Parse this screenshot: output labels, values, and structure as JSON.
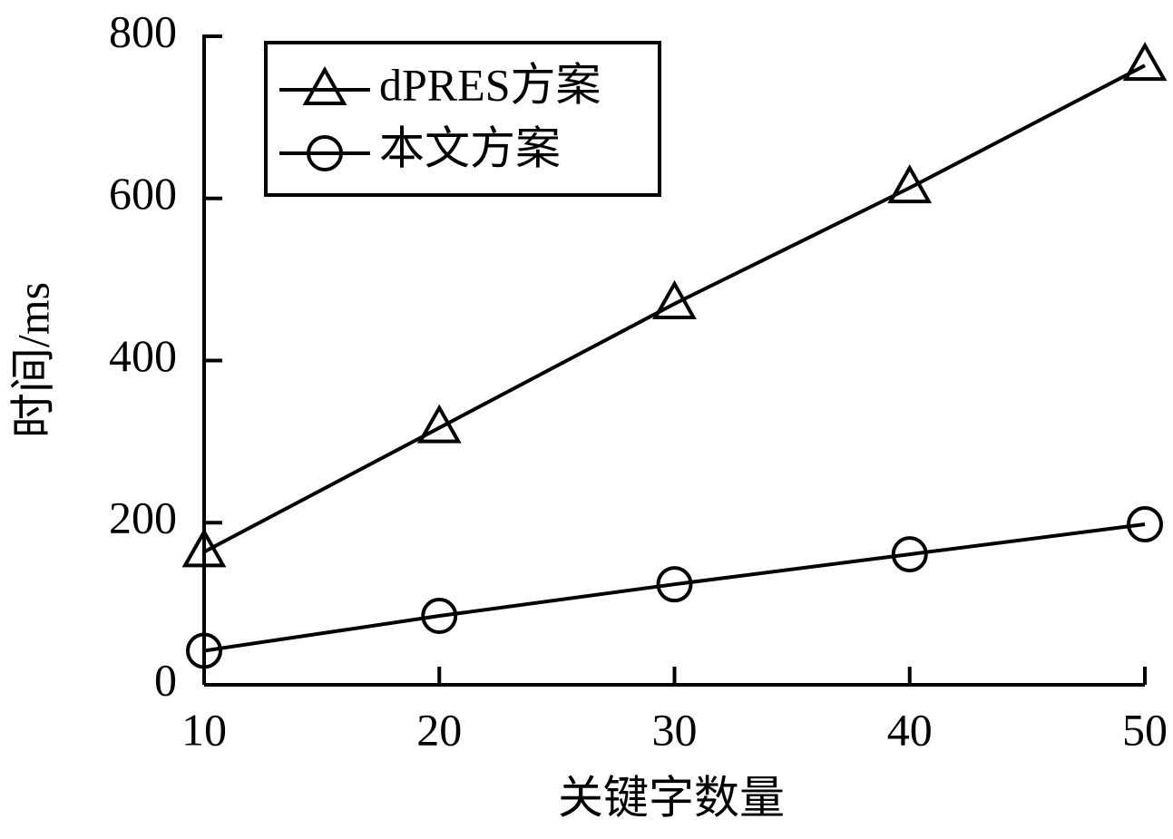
{
  "chart_data": {
    "type": "line",
    "x_label": "关键字数量",
    "y_label": "时间/ms",
    "x": [
      10,
      20,
      30,
      40,
      50
    ],
    "series": [
      {
        "name": "dPRES方案",
        "color": "#000000",
        "marker": "triangle",
        "values": [
          164,
          317,
          470,
          613,
          764
        ]
      },
      {
        "name": "本文方案",
        "color": "#000000",
        "marker": "circle",
        "values": [
          42,
          85,
          124,
          161,
          198
        ]
      }
    ],
    "xlim": [
      10,
      50
    ],
    "xticks": [
      10,
      20,
      30,
      40,
      50
    ],
    "ylim": [
      0,
      800
    ],
    "yticks": [
      0,
      200,
      400,
      600,
      800
    ],
    "grid": false,
    "legend": "upper left"
  }
}
